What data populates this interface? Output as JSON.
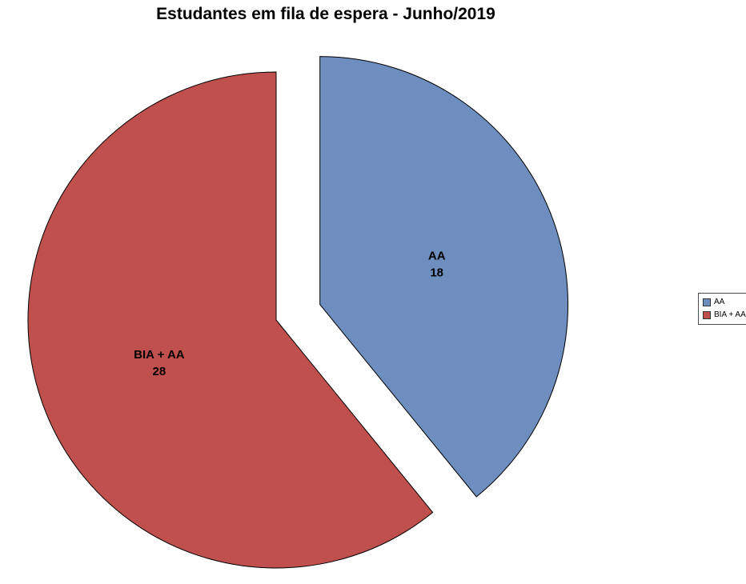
{
  "title": "Estudantes em fila de espera - Junho/2019",
  "chart_data": {
    "type": "pie",
    "title": "Estudantes em fila de espera - Junho/2019",
    "total": 46,
    "start_angle_deg": 0,
    "direction": "clockwise",
    "legend_position": "right",
    "slices": [
      {
        "label": "AA",
        "value": 18,
        "color": "#6D8EBF",
        "exploded": true
      },
      {
        "label": "BIA + AA",
        "value": 28,
        "color": "#C0504D",
        "exploded": false
      }
    ]
  },
  "legend": {
    "items": [
      {
        "label": "AA",
        "color": "#6D8EBF"
      },
      {
        "label": "BIA + AA",
        "color": "#C0504D"
      }
    ]
  }
}
